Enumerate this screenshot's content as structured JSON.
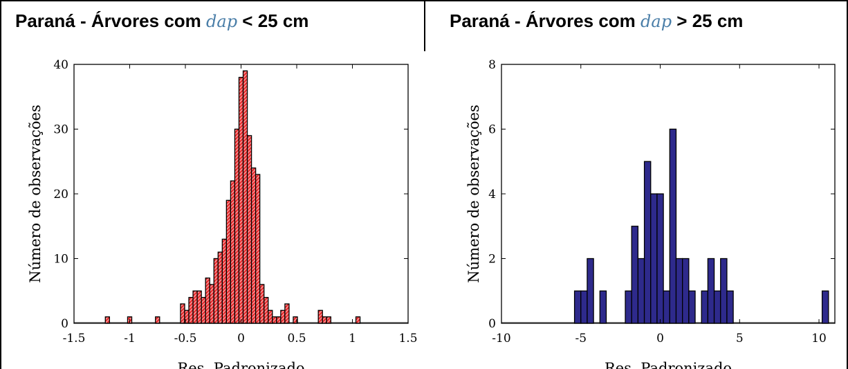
{
  "charts": [
    {
      "title_pre": "Paraná - Árvores com ",
      "title_var": "dap",
      "title_post": " < 25 cm",
      "chart_data": {
        "type": "bar",
        "xlabel": "Res. Padronizado",
        "ylabel": "Número de observações",
        "xlim": [
          -1.5,
          1.5
        ],
        "ylim": [
          0,
          40
        ],
        "xticks": [
          "-1.5",
          "-1",
          "-0.5",
          "0",
          "0.5",
          "1",
          "1.5"
        ],
        "yticks": [
          "0",
          "10",
          "20",
          "30",
          "40"
        ],
        "bin_width": 0.0375,
        "bins": [
          {
            "x": -1.2,
            "y": 1
          },
          {
            "x": -1.0,
            "y": 1
          },
          {
            "x": -0.75,
            "y": 1
          },
          {
            "x": -0.525,
            "y": 3
          },
          {
            "x": -0.4875,
            "y": 2
          },
          {
            "x": -0.45,
            "y": 4
          },
          {
            "x": -0.4125,
            "y": 5
          },
          {
            "x": -0.375,
            "y": 5
          },
          {
            "x": -0.3375,
            "y": 4
          },
          {
            "x": -0.3,
            "y": 7
          },
          {
            "x": -0.2625,
            "y": 6
          },
          {
            "x": -0.225,
            "y": 10
          },
          {
            "x": -0.1875,
            "y": 11
          },
          {
            "x": -0.15,
            "y": 13
          },
          {
            "x": -0.1125,
            "y": 19
          },
          {
            "x": -0.075,
            "y": 22
          },
          {
            "x": -0.0375,
            "y": 30
          },
          {
            "x": 0.0,
            "y": 38
          },
          {
            "x": 0.0375,
            "y": 39
          },
          {
            "x": 0.075,
            "y": 29
          },
          {
            "x": 0.1125,
            "y": 24
          },
          {
            "x": 0.15,
            "y": 23
          },
          {
            "x": 0.1875,
            "y": 6
          },
          {
            "x": 0.225,
            "y": 4
          },
          {
            "x": 0.2625,
            "y": 2
          },
          {
            "x": 0.3,
            "y": 1
          },
          {
            "x": 0.3375,
            "y": 1
          },
          {
            "x": 0.375,
            "y": 2
          },
          {
            "x": 0.4125,
            "y": 3
          },
          {
            "x": 0.4875,
            "y": 1
          },
          {
            "x": 0.7125,
            "y": 2
          },
          {
            "x": 0.75,
            "y": 1
          },
          {
            "x": 0.7875,
            "y": 1
          },
          {
            "x": 1.05,
            "y": 1
          }
        ],
        "bar_color": "#e8282a",
        "hatch_color": "#f4a0a0",
        "edge_color": "#000000"
      }
    },
    {
      "title_pre": "Paraná - Árvores com ",
      "title_var": "dap",
      "title_post": " > 25 cm",
      "chart_data": {
        "type": "bar",
        "xlabel": "Res. Padronizado",
        "ylabel": "Número de observações",
        "xlim": [
          -10,
          11
        ],
        "ylim": [
          0,
          8
        ],
        "xticks": [
          "-10",
          "-5",
          "0",
          "5",
          "10"
        ],
        "yticks": [
          "0",
          "2",
          "4",
          "6",
          "8"
        ],
        "bin_width": 0.4,
        "bins": [
          {
            "x": -5.2,
            "y": 1
          },
          {
            "x": -4.8,
            "y": 1
          },
          {
            "x": -4.4,
            "y": 2
          },
          {
            "x": -3.6,
            "y": 1
          },
          {
            "x": -2.0,
            "y": 1
          },
          {
            "x": -1.6,
            "y": 3
          },
          {
            "x": -1.2,
            "y": 2
          },
          {
            "x": -0.8,
            "y": 5
          },
          {
            "x": -0.4,
            "y": 4
          },
          {
            "x": 0.0,
            "y": 4
          },
          {
            "x": 0.4,
            "y": 1
          },
          {
            "x": 0.8,
            "y": 6
          },
          {
            "x": 1.2,
            "y": 2
          },
          {
            "x": 1.6,
            "y": 2
          },
          {
            "x": 2.0,
            "y": 1
          },
          {
            "x": 2.8,
            "y": 1
          },
          {
            "x": 3.2,
            "y": 2
          },
          {
            "x": 3.6,
            "y": 1
          },
          {
            "x": 4.0,
            "y": 2
          },
          {
            "x": 4.4,
            "y": 1
          },
          {
            "x": 10.4,
            "y": 1
          }
        ],
        "bar_color": "#2e2a8c",
        "edge_color": "#000000"
      }
    }
  ]
}
